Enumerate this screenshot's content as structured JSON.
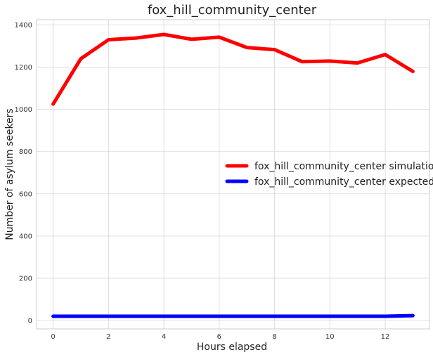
{
  "chart_data": {
    "type": "line",
    "title": "fox_hill_community_center",
    "xlabel": "Hours elapsed",
    "ylabel": "Number of asylum seekers",
    "x": [
      0,
      1,
      2,
      3,
      4,
      5,
      6,
      7,
      8,
      9,
      10,
      11,
      12,
      13
    ],
    "xticks": [
      0,
      2,
      4,
      6,
      8,
      10,
      12
    ],
    "yticks": [
      0,
      200,
      400,
      600,
      800,
      1000,
      1200,
      1400
    ],
    "xlim": [
      -0.6,
      13.6
    ],
    "ylim": [
      -40,
      1425
    ],
    "grid": true,
    "legend_position": "center-right",
    "series": [
      {
        "name": "fox_hill_community_center simulation",
        "color": "#ff0000",
        "values": [
          1025,
          1240,
          1330,
          1338,
          1355,
          1332,
          1342,
          1293,
          1283,
          1226,
          1229,
          1220,
          1260,
          1180
        ]
      },
      {
        "name": "fox_hill_community_center expected",
        "color": "#0000ff",
        "values": [
          20,
          20,
          20,
          20,
          20,
          20,
          20,
          20,
          20,
          20,
          20,
          20,
          20,
          23
        ]
      }
    ]
  }
}
